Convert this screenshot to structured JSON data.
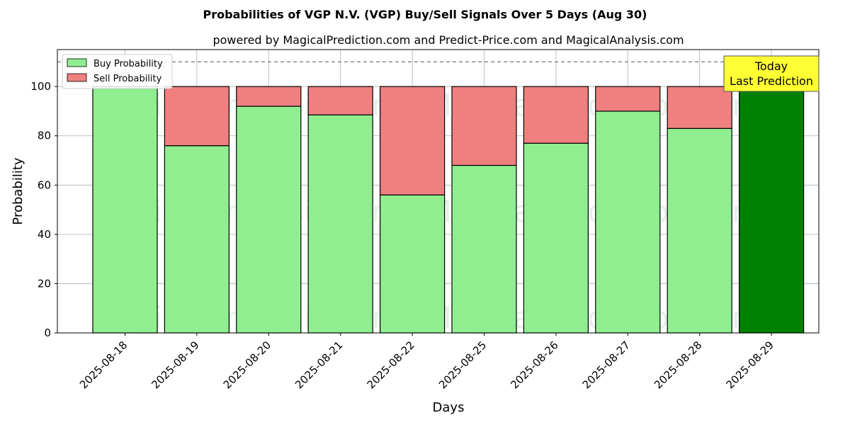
{
  "chart_data": {
    "type": "bar",
    "stacked": true,
    "title": "Probabilities of VGP N.V. (VGP) Buy/Sell Signals Over 5 Days (Aug 30)",
    "subtitle": "powered by MagicalPrediction.com and Predict-Price.com and MagicalAnalysis.com",
    "xlabel": "Days",
    "ylabel": "Probability",
    "ylim": [
      0,
      115
    ],
    "yticks": [
      0,
      20,
      40,
      60,
      80,
      100
    ],
    "reference_line": 110,
    "grid": true,
    "legend_position": "top-left",
    "categories": [
      "2025-08-18",
      "2025-08-19",
      "2025-08-20",
      "2025-08-21",
      "2025-08-22",
      "2025-08-25",
      "2025-08-26",
      "2025-08-27",
      "2025-08-28",
      "2025-08-29"
    ],
    "series": [
      {
        "name": "Buy Probability",
        "color": "#90ee90",
        "values": [
          100,
          76,
          92,
          88.5,
          56,
          68,
          77,
          90,
          83,
          100
        ]
      },
      {
        "name": "Sell Probability",
        "color": "#f08080",
        "values": [
          0,
          24,
          8,
          11.5,
          44,
          32,
          23,
          10,
          17,
          0
        ]
      }
    ],
    "highlight": {
      "index": 9,
      "color": "#008000"
    },
    "annotation": {
      "line1": "Today",
      "line2": "Last Prediction",
      "background": "#ffff33"
    },
    "watermarks": [
      "MagicalAnalysis.com",
      "MagicalPrediction.com"
    ]
  }
}
